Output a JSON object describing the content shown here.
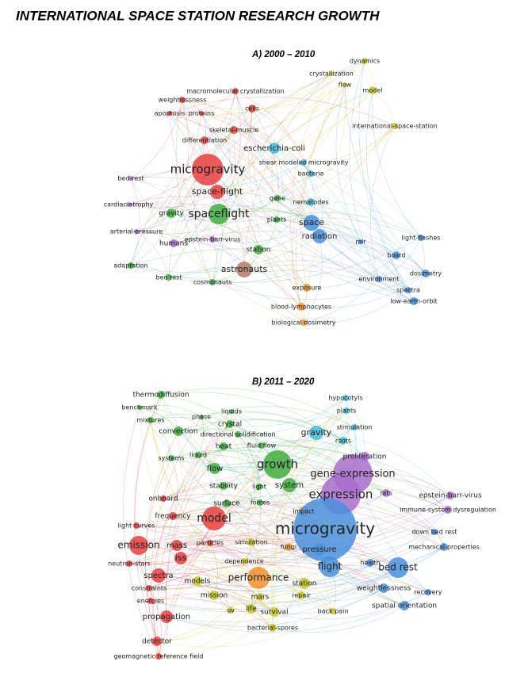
{
  "title": "INTERNATIONAL SPACE STATION RESEARCH GROWTH",
  "panels": [
    {
      "title": "A) 2000 – 2010",
      "labels": [
        "dynamics",
        "crystallization",
        "flow",
        "model",
        "macromolecular crystallization",
        "weightlessness",
        "cells",
        "apoptosis",
        "proteins",
        "skeletal-muscle",
        "international-space-station",
        "differentiation",
        "escherichia-coli",
        "shear modeled microgravity",
        "microgravity",
        "bacteria",
        "bed-rest",
        "space-flight",
        "gene",
        "nematodes",
        "cardiac atrophy",
        "spaceflight",
        "gravity",
        "plants",
        "space",
        "arterial-pressure",
        "radiation",
        "epstein-barr-virus",
        "humans",
        "mir",
        "light-flashes",
        "station",
        "board",
        "adaptation",
        "astronauts",
        "dosimetry",
        "bed rest",
        "environment",
        "cosmonauts",
        "exposure",
        "spectra",
        "low-earth-orbit",
        "blood-lymphocytes",
        "biological dosimetry"
      ]
    },
    {
      "title": "B) 2011 – 2020",
      "labels": [
        "hypocotyls",
        "thermodiffusion",
        "benchmark",
        "plants",
        "mixtures",
        "phase",
        "liquids",
        "crystal",
        "stimulation",
        "convection",
        "gravity",
        "directional solidification",
        "roots",
        "heat",
        "fluid flow",
        "systems",
        "liquid",
        "proliferation",
        "growth",
        "flow",
        "gene-expression",
        "stability",
        "light",
        "system",
        "onboard",
        "expression",
        "rats",
        "epstein-barr-virus",
        "forces",
        "surface",
        "impact",
        "immune-system dysregulation",
        "frequency",
        "model",
        "light curves",
        "microgravity",
        "down bed rest",
        "emission",
        "mass",
        "particles",
        "simulation",
        "fungi",
        "pressure",
        "mechanical-properties",
        "iss",
        "dependence",
        "neutron-stars",
        "health",
        "flight",
        "bed rest",
        "spectra",
        "performance",
        "constraints",
        "models",
        "station",
        "weightlessness",
        "mission",
        "mars",
        "repair",
        "recovery",
        "energies",
        "uv",
        "life",
        "survival",
        "spatial orientation",
        "back pain",
        "propagation",
        "bacterial-spores",
        "detector",
        "geomagnetic reference field"
      ]
    }
  ]
}
